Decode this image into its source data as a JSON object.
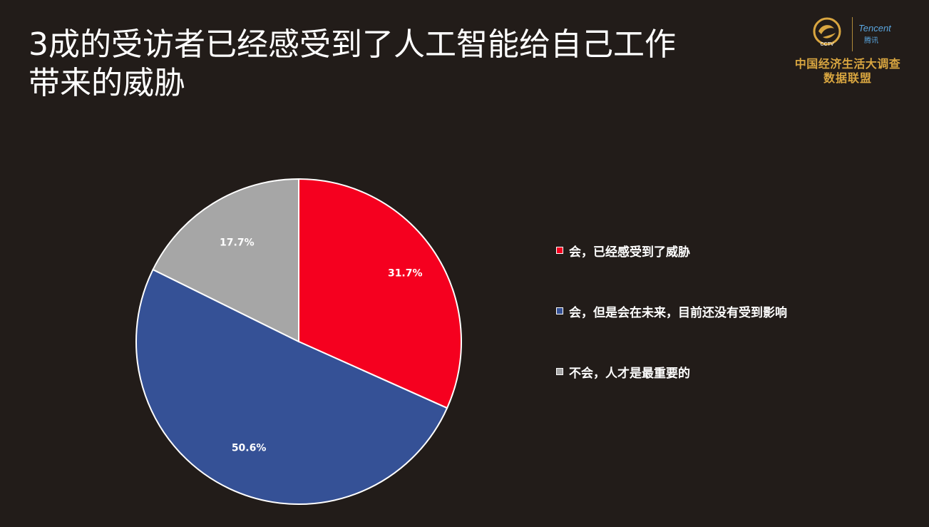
{
  "slide": {
    "title": "3成的受访者已经感受到了人工智能给自己工作带来的威胁"
  },
  "logo": {
    "cctv_text": "CCTV",
    "tencent_en": "Tencent",
    "tencent_cn": "腾讯",
    "line1": "中国经济生活大调查",
    "line2": "数据联盟",
    "accent_color": "#d9a640"
  },
  "chart_data": {
    "type": "pie",
    "title": "",
    "legend_position": "right",
    "slices": [
      {
        "label": "会，已经感受到了威胁",
        "value": 31.7,
        "value_label": "31.7%",
        "color": "#f5001f"
      },
      {
        "label": "会，但是会在未来，目前还没有受到影响",
        "value": 50.6,
        "value_label": "50.6%",
        "color": "#355196"
      },
      {
        "label": "不会，人才是最重要的",
        "value": 17.7,
        "value_label": "17.7%",
        "color": "#a6a6a6"
      }
    ]
  }
}
